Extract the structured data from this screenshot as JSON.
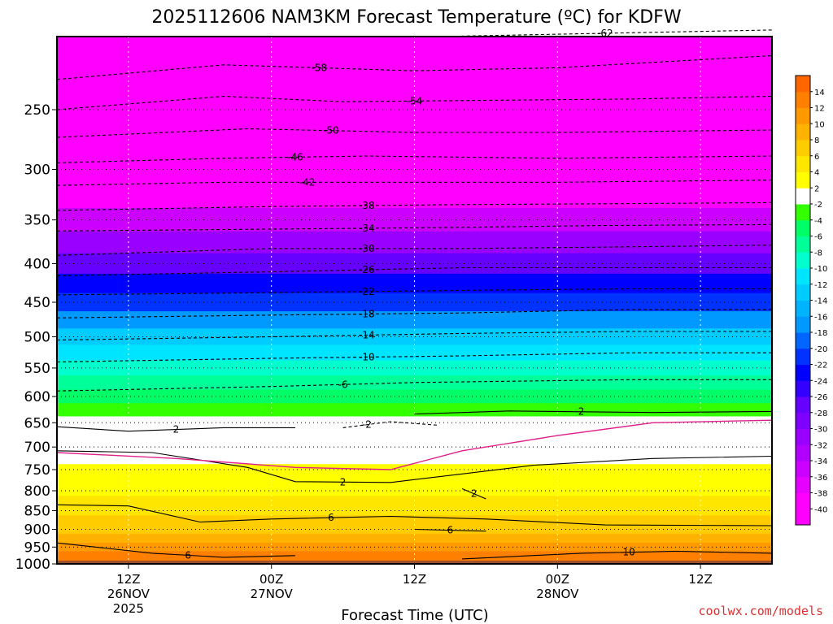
{
  "chart_data": {
    "type": "heatmap",
    "title": "2025112606 NAM3KM Forecast Temperature (ºC) for KDFW",
    "xlabel": "Forecast Time (UTC)",
    "ylabel": "",
    "credit": "coolwx.com/models",
    "y_scale": "log-pressure",
    "ylim": [
      1000,
      200
    ],
    "y_ticks": [
      250,
      300,
      350,
      400,
      450,
      500,
      550,
      600,
      650,
      700,
      750,
      800,
      850,
      900,
      950,
      1000
    ],
    "x_hours_range": [
      6,
      66
    ],
    "x_ticks": [
      {
        "hour": 12,
        "lines": [
          "12Z",
          "26NOV",
          "2025"
        ]
      },
      {
        "hour": 24,
        "lines": [
          "00Z",
          "27NOV"
        ]
      },
      {
        "hour": 36,
        "lines": [
          "12Z"
        ]
      },
      {
        "hour": 48,
        "lines": [
          "00Z",
          "28NOV"
        ]
      },
      {
        "hour": 60,
        "lines": [
          "12Z"
        ]
      }
    ],
    "colorbar": {
      "boundaries": [
        -42,
        -40,
        -38,
        -36,
        -34,
        -32,
        -30,
        -28,
        -26,
        -24,
        -22,
        -20,
        -18,
        -16,
        -14,
        -12,
        -10,
        -8,
        -6,
        -4,
        -2,
        2,
        4,
        6,
        8,
        10,
        12,
        14,
        16
      ],
      "colors": [
        "#ff00ff",
        "#ff00ff",
        "#e600ff",
        "#cc00ff",
        "#b200ff",
        "#9900ff",
        "#7f00ff",
        "#6600ff",
        "#3300ff",
        "#0000ff",
        "#0033ff",
        "#0066ff",
        "#0099ff",
        "#00b3ff",
        "#00ccff",
        "#00e5ff",
        "#00ffcc",
        "#00ff99",
        "#00ff66",
        "#33ff00",
        "#ffffff",
        "#ffff00",
        "#ffe600",
        "#ffcc00",
        "#ffb300",
        "#ff9900",
        "#ff8000",
        "#ff6600"
      ],
      "labels": [
        {
          "v": -40,
          "t": "-40"
        },
        {
          "v": -38,
          "t": "-38"
        },
        {
          "v": -36,
          "t": "-36"
        },
        {
          "v": -34,
          "t": "-34"
        },
        {
          "v": -32,
          "t": "-32"
        },
        {
          "v": -30,
          "t": "-30"
        },
        {
          "v": -28,
          "t": "-28"
        },
        {
          "v": -26,
          "t": "-26"
        },
        {
          "v": -24,
          "t": "-24"
        },
        {
          "v": -22,
          "t": "-22"
        },
        {
          "v": -20,
          "t": "-20"
        },
        {
          "v": -18,
          "t": "-18"
        },
        {
          "v": -16,
          "t": "-16"
        },
        {
          "v": -14,
          "t": "-14"
        },
        {
          "v": -12,
          "t": "-12"
        },
        {
          "v": -10,
          "t": "-10"
        },
        {
          "v": -8,
          "t": "-8"
        },
        {
          "v": -6,
          "t": "-6"
        },
        {
          "v": -4,
          "t": "-4"
        },
        {
          "v": -2,
          "t": "-2"
        },
        {
          "v": 2,
          "t": "2"
        },
        {
          "v": 4,
          "t": "4"
        },
        {
          "v": 6,
          "t": "6"
        },
        {
          "v": 8,
          "t": "8"
        },
        {
          "v": 10,
          "t": "10"
        },
        {
          "v": 12,
          "t": "12"
        },
        {
          "v": 14,
          "t": "14"
        }
      ]
    },
    "temperature_profile": [
      {
        "p": 200,
        "t": -64
      },
      {
        "p": 225,
        "t": -58
      },
      {
        "p": 250,
        "t": -54
      },
      {
        "p": 275,
        "t": -49
      },
      {
        "p": 300,
        "t": -44
      },
      {
        "p": 325,
        "t": -40
      },
      {
        "p": 350,
        "t": -36
      },
      {
        "p": 375,
        "t": -32
      },
      {
        "p": 400,
        "t": -28
      },
      {
        "p": 425,
        "t": -24
      },
      {
        "p": 450,
        "t": -21
      },
      {
        "p": 475,
        "t": -17.5
      },
      {
        "p": 500,
        "t": -14
      },
      {
        "p": 525,
        "t": -12
      },
      {
        "p": 550,
        "t": -10
      },
      {
        "p": 575,
        "t": -8
      },
      {
        "p": 600,
        "t": -6
      },
      {
        "p": 625,
        "t": -4
      },
      {
        "p": 650,
        "t": -2
      },
      {
        "p": 675,
        "t": -1
      },
      {
        "p": 700,
        "t": 0
      },
      {
        "p": 725,
        "t": 0.5
      },
      {
        "p": 750,
        "t": 2
      },
      {
        "p": 775,
        "t": 2.5
      },
      {
        "p": 800,
        "t": 3.5
      },
      {
        "p": 825,
        "t": 4.5
      },
      {
        "p": 850,
        "t": 5.5
      },
      {
        "p": 875,
        "t": 6.5
      },
      {
        "p": 900,
        "t": 7
      },
      {
        "p": 925,
        "t": 8.5
      },
      {
        "p": 950,
        "t": 10
      },
      {
        "p": 975,
        "t": 12
      },
      {
        "p": 1000,
        "t": 13.5
      }
    ],
    "contours": [
      {
        "value": -62,
        "label": "-62",
        "points": [
          [
            38,
            200
          ],
          [
            66,
            196
          ]
        ]
      },
      {
        "value": -58,
        "label": "-58",
        "points": [
          [
            6,
            228
          ],
          [
            20,
            218
          ],
          [
            36,
            222
          ],
          [
            48,
            220
          ],
          [
            66,
            212
          ]
        ]
      },
      {
        "value": -54,
        "label": "-54",
        "points": [
          [
            6,
            250
          ],
          [
            20,
            240
          ],
          [
            30,
            244
          ],
          [
            42,
            243
          ],
          [
            54,
            242
          ],
          [
            66,
            240
          ]
        ]
      },
      {
        "value": -50,
        "label": "-50",
        "points": [
          [
            6,
            272
          ],
          [
            22,
            265
          ],
          [
            36,
            268
          ],
          [
            48,
            268
          ],
          [
            66,
            266
          ]
        ]
      },
      {
        "value": -46,
        "label": "-46",
        "points": [
          [
            6,
            294
          ],
          [
            20,
            290
          ],
          [
            32,
            288
          ],
          [
            48,
            290
          ],
          [
            66,
            288
          ]
        ]
      },
      {
        "value": -42,
        "label": "-42",
        "points": [
          [
            6,
            315
          ],
          [
            20,
            312
          ],
          [
            34,
            312
          ],
          [
            48,
            312
          ],
          [
            66,
            310
          ]
        ]
      },
      {
        "value": -38,
        "label": "-38",
        "points": [
          [
            6,
            340
          ],
          [
            24,
            336
          ],
          [
            40,
            334
          ],
          [
            54,
            333
          ],
          [
            66,
            332
          ]
        ]
      },
      {
        "value": -34,
        "label": "-34",
        "points": [
          [
            6,
            362
          ],
          [
            24,
            360
          ],
          [
            40,
            358
          ],
          [
            52,
            356
          ],
          [
            66,
            355
          ]
        ]
      },
      {
        "value": -30,
        "label": "-30",
        "points": [
          [
            6,
            390
          ],
          [
            24,
            382
          ],
          [
            40,
            382
          ],
          [
            54,
            380
          ],
          [
            66,
            378
          ]
        ]
      },
      {
        "value": -26,
        "label": "-26",
        "points": [
          [
            6,
            415
          ],
          [
            24,
            410
          ],
          [
            40,
            405
          ],
          [
            54,
            405
          ],
          [
            66,
            405
          ]
        ]
      },
      {
        "value": -22,
        "label": "-22",
        "points": [
          [
            6,
            440
          ],
          [
            24,
            437
          ],
          [
            40,
            434
          ],
          [
            54,
            432
          ],
          [
            66,
            432
          ]
        ]
      },
      {
        "value": -18,
        "label": "-18",
        "points": [
          [
            6,
            472
          ],
          [
            24,
            468
          ],
          [
            40,
            465
          ],
          [
            54,
            460
          ],
          [
            66,
            460
          ]
        ]
      },
      {
        "value": -14,
        "label": "-14",
        "points": [
          [
            6,
            505
          ],
          [
            24,
            500
          ],
          [
            40,
            495
          ],
          [
            54,
            492
          ],
          [
            66,
            492
          ]
        ]
      },
      {
        "value": -10,
        "label": "-10",
        "points": [
          [
            6,
            540
          ],
          [
            24,
            534
          ],
          [
            40,
            530
          ],
          [
            54,
            525
          ],
          [
            66,
            525
          ]
        ]
      },
      {
        "value": -6,
        "label": "-6",
        "points": [
          [
            6,
            590
          ],
          [
            24,
            582
          ],
          [
            36,
            575
          ],
          [
            54,
            570
          ],
          [
            66,
            570
          ]
        ]
      },
      {
        "value": -2,
        "label": "-2",
        "points": [
          [
            30,
            660
          ],
          [
            34,
            648
          ],
          [
            38,
            655
          ]
        ]
      },
      {
        "value": 2,
        "label": "2",
        "points": [
          [
            6,
            708
          ],
          [
            14,
            712
          ],
          [
            22,
            745
          ],
          [
            26,
            778
          ],
          [
            34,
            780
          ],
          [
            40,
            760
          ],
          [
            46,
            740
          ],
          [
            56,
            725
          ],
          [
            66,
            720
          ]
        ]
      },
      {
        "value": 2,
        "label": "2",
        "points": [
          [
            36,
            633
          ],
          [
            44,
            627
          ],
          [
            56,
            630
          ],
          [
            66,
            628
          ]
        ]
      },
      {
        "value": 2,
        "label": "2",
        "points": [
          [
            6,
            658
          ],
          [
            12,
            667
          ],
          [
            20,
            660
          ],
          [
            26,
            660
          ]
        ]
      },
      {
        "value": 2,
        "label": "2",
        "points": [
          [
            40,
            795
          ],
          [
            42,
            820
          ]
        ]
      },
      {
        "value": 6,
        "label": "6",
        "points": [
          [
            6,
            835
          ],
          [
            12,
            838
          ],
          [
            18,
            880
          ],
          [
            24,
            872
          ],
          [
            34,
            865
          ],
          [
            42,
            872
          ],
          [
            52,
            888
          ],
          [
            66,
            890
          ]
        ]
      },
      {
        "value": 6,
        "label": "6",
        "points": [
          [
            6,
            938
          ],
          [
            14,
            968
          ],
          [
            20,
            980
          ],
          [
            26,
            975
          ]
        ]
      },
      {
        "value": 6,
        "label": "6",
        "points": [
          [
            36,
            900
          ],
          [
            42,
            905
          ]
        ]
      },
      {
        "value": 10,
        "label": "10",
        "points": [
          [
            40,
            985
          ],
          [
            50,
            968
          ],
          [
            58,
            962
          ],
          [
            66,
            968
          ]
        ]
      },
      {
        "value": 0,
        "label": "",
        "points": [
          [
            6,
            712
          ],
          [
            16,
            725
          ],
          [
            26,
            745
          ],
          [
            34,
            750
          ],
          [
            40,
            708
          ],
          [
            48,
            676
          ],
          [
            56,
            650
          ],
          [
            66,
            645
          ]
        ]
      }
    ]
  }
}
